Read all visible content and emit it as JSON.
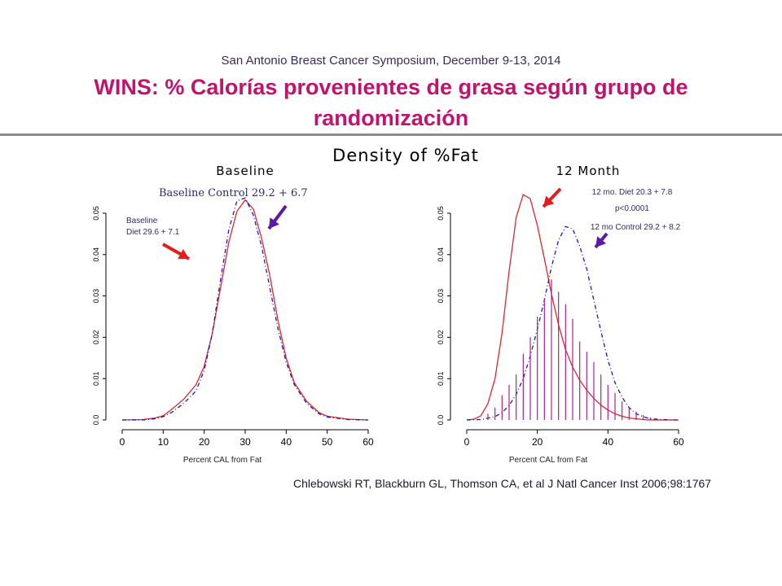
{
  "header": {
    "symposium": "San Antonio Breast Cancer Symposium, December 9-13, 2014",
    "title": "WINS: % Calorías provenientes de grasa según grupo de randomización"
  },
  "figure_title": "Density of %Fat",
  "reference": "Chlebowski RT, Blackburn GL, Thomson CA, et al J Natl Cancer Inst 2006;98:1767",
  "colors": {
    "diet": "#e0242c",
    "control": "#1c16c4",
    "bars": "#b0208e",
    "arrow_red": "#e51c1c",
    "arrow_purple": "#5a1aa6",
    "title": "#c0126e"
  },
  "chart_data": [
    {
      "type": "line",
      "title": "Baseline",
      "xlabel": "Percent CAL from Fat",
      "ylabel": "",
      "xlim": [
        0,
        60
      ],
      "ylim": [
        0,
        0.05
      ],
      "xticks": [
        "0",
        "10",
        "20",
        "30",
        "40",
        "50",
        "60"
      ],
      "yticks": [
        "0.0",
        "0.01",
        "0.02",
        "0.03",
        "0.04",
        "0.05"
      ],
      "annotations": [
        "Baseline Control 29.2 + 6.7",
        "Baseline",
        "Diet 29.6 + 7.1"
      ],
      "series": [
        {
          "name": "Diet",
          "style": "solid",
          "x": [
            0,
            5,
            8,
            10,
            12,
            15,
            18,
            20,
            22,
            24,
            26,
            28,
            30,
            32,
            34,
            36,
            38,
            40,
            42,
            45,
            48,
            50,
            55,
            60
          ],
          "y": [
            0.0,
            0.0001,
            0.0005,
            0.001,
            0.0025,
            0.005,
            0.0085,
            0.013,
            0.021,
            0.032,
            0.043,
            0.0505,
            0.0532,
            0.051,
            0.044,
            0.035,
            0.024,
            0.015,
            0.009,
            0.0045,
            0.0018,
            0.0009,
            0.0002,
            0.0
          ]
        },
        {
          "name": "Control",
          "style": "dashed",
          "x": [
            0,
            5,
            8,
            10,
            12,
            15,
            18,
            20,
            22,
            24,
            26,
            28,
            30,
            32,
            34,
            36,
            38,
            40,
            42,
            45,
            48,
            50,
            55,
            60
          ],
          "y": [
            0.0,
            0.0,
            0.0003,
            0.0008,
            0.0018,
            0.004,
            0.007,
            0.012,
            0.021,
            0.034,
            0.046,
            0.053,
            0.0537,
            0.0495,
            0.042,
            0.032,
            0.022,
            0.014,
            0.0085,
            0.004,
            0.0015,
            0.0007,
            0.0001,
            0.0
          ]
        }
      ]
    },
    {
      "type": "line",
      "title": "12 Month",
      "xlabel": "Percent CAL from Fat",
      "ylabel": "",
      "xlim": [
        0,
        60
      ],
      "ylim": [
        0,
        0.05
      ],
      "xticks": [
        "0",
        "20",
        "40",
        "60"
      ],
      "yticks": [
        "0.0",
        "0.01",
        "0.02",
        "0.03",
        "0.04",
        "0.05"
      ],
      "annotations": [
        "12 mo. Diet 20.3 + 7.8",
        "p<0.0001",
        "12 mo Control 29.2 + 8.2"
      ],
      "series": [
        {
          "name": "Diet",
          "style": "solid",
          "x": [
            0,
            2,
            4,
            6,
            8,
            10,
            12,
            14,
            16,
            18,
            20,
            22,
            24,
            26,
            28,
            30,
            32,
            34,
            36,
            38,
            40,
            42,
            44,
            46,
            48,
            50,
            52,
            55,
            60
          ],
          "y": [
            0.0,
            0.0002,
            0.001,
            0.004,
            0.01,
            0.021,
            0.036,
            0.049,
            0.0545,
            0.0535,
            0.047,
            0.039,
            0.0305,
            0.023,
            0.017,
            0.0128,
            0.0096,
            0.0072,
            0.0052,
            0.0036,
            0.0024,
            0.0015,
            0.0009,
            0.0005,
            0.0003,
            0.0001,
            0.0,
            0.0,
            0.0
          ]
        },
        {
          "name": "Control",
          "style": "dashed",
          "x": [
            0,
            4,
            8,
            10,
            12,
            14,
            16,
            18,
            20,
            22,
            24,
            26,
            28,
            30,
            32,
            34,
            36,
            38,
            40,
            42,
            44,
            46,
            48,
            50,
            52,
            55,
            60
          ],
          "y": [
            0.0,
            0.0001,
            0.0008,
            0.0018,
            0.0035,
            0.0062,
            0.01,
            0.0155,
            0.022,
            0.029,
            0.037,
            0.0435,
            0.0468,
            0.0462,
            0.042,
            0.0365,
            0.029,
            0.0215,
            0.0145,
            0.009,
            0.0055,
            0.003,
            0.0015,
            0.0008,
            0.0003,
            0.0001,
            0.0
          ]
        },
        {
          "name": "Diet (histogram)",
          "style": "vlines",
          "x": [
            6,
            8,
            10,
            12,
            14,
            16,
            18,
            20,
            22,
            24,
            26,
            28,
            30,
            32,
            34,
            36,
            38,
            40,
            42,
            44,
            46,
            48,
            50,
            52
          ],
          "y": [
            0.0015,
            0.003,
            0.006,
            0.0085,
            0.011,
            0.016,
            0.02,
            0.025,
            0.0295,
            0.034,
            0.031,
            0.028,
            0.0245,
            0.019,
            0.0165,
            0.014,
            0.011,
            0.0085,
            0.0065,
            0.0045,
            0.003,
            0.002,
            0.0012,
            0.0006
          ]
        }
      ]
    }
  ]
}
